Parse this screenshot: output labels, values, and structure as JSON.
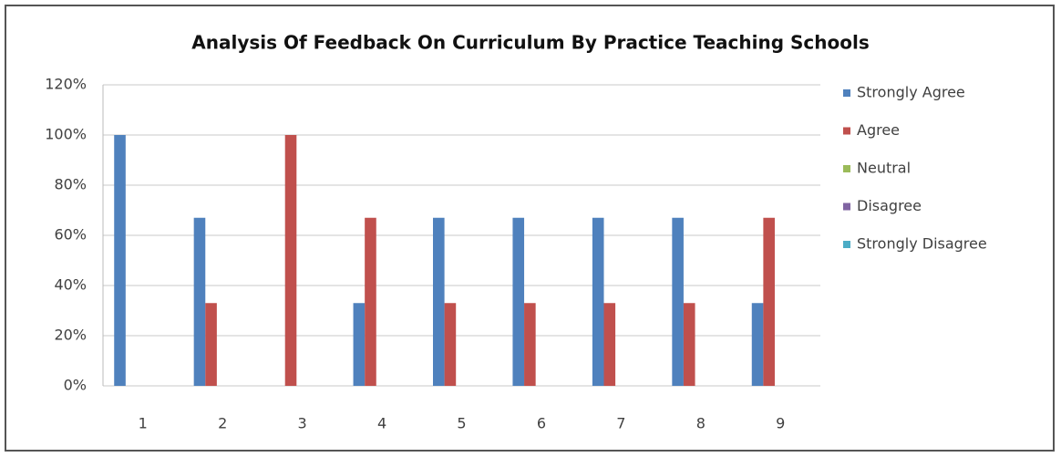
{
  "chart_data": {
    "type": "bar",
    "title": "Analysis Of Feedback On Curriculum By Practice Teaching Schools",
    "categories": [
      "1",
      "2",
      "3",
      "4",
      "5",
      "6",
      "7",
      "8",
      "9"
    ],
    "series": [
      {
        "name": "Strongly Agree",
        "color": "#4f81bd",
        "values": [
          100,
          67,
          0,
          33,
          67,
          67,
          67,
          67,
          33
        ]
      },
      {
        "name": "Agree",
        "color": "#c0504d",
        "values": [
          0,
          33,
          100,
          67,
          33,
          33,
          33,
          33,
          67
        ]
      },
      {
        "name": "Neutral",
        "color": "#9bbb59",
        "values": [
          0,
          0,
          0,
          0,
          0,
          0,
          0,
          0,
          0
        ]
      },
      {
        "name": "Disagree",
        "color": "#8064a2",
        "values": [
          0,
          0,
          0,
          0,
          0,
          0,
          0,
          0,
          0
        ]
      },
      {
        "name": "Strongly Disagree",
        "color": "#4bacc6",
        "values": [
          0,
          0,
          0,
          0,
          0,
          0,
          0,
          0,
          0
        ]
      }
    ],
    "ylim": [
      0,
      120
    ],
    "yticks": [
      {
        "value": 0,
        "label": "0%"
      },
      {
        "value": 20,
        "label": "20%"
      },
      {
        "value": 40,
        "label": "40%"
      },
      {
        "value": 60,
        "label": "60%"
      },
      {
        "value": 80,
        "label": "80%"
      },
      {
        "value": 100,
        "label": "100%"
      },
      {
        "value": 120,
        "label": "120%"
      }
    ],
    "grid": true,
    "legend": "right"
  }
}
